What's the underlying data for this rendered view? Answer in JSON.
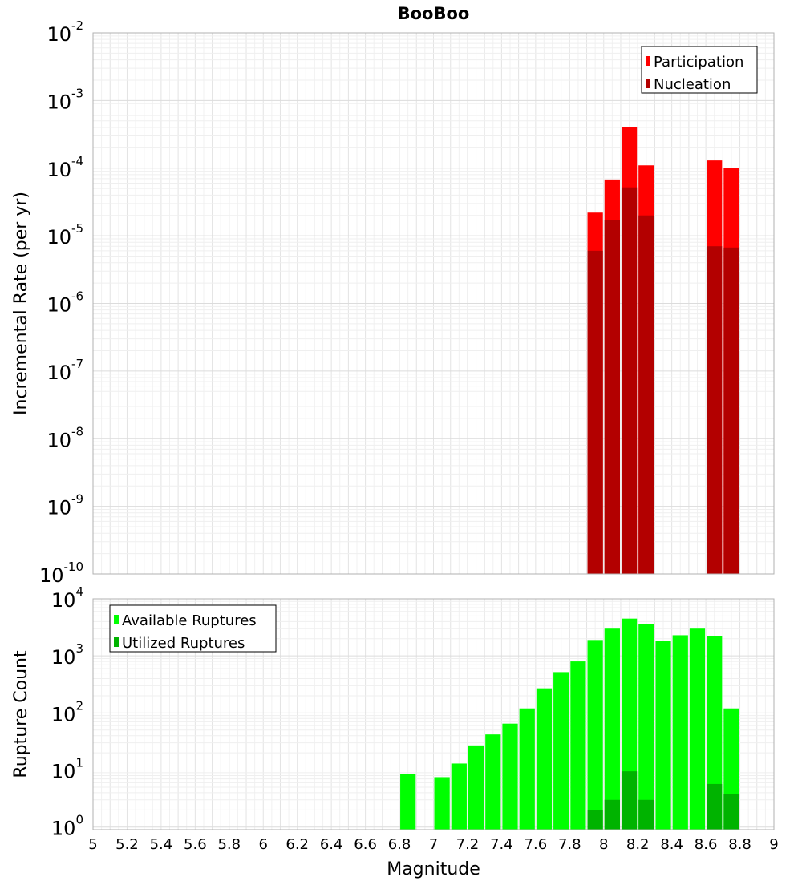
{
  "chart_data": [
    {
      "type": "bar",
      "title": "BooBoo",
      "xlabel": "",
      "ylabel": "Incremental Rate (per yr)",
      "yscale": "log",
      "ylim": [
        1e-10,
        0.01
      ],
      "xlim": [
        5,
        9
      ],
      "grid": true,
      "legend_position": "top-right",
      "y_ticks": [
        {
          "base": "10",
          "exp": "-10",
          "value": 1e-10
        },
        {
          "base": "10",
          "exp": "-9",
          "value": 1e-09
        },
        {
          "base": "10",
          "exp": "-8",
          "value": 1e-08
        },
        {
          "base": "10",
          "exp": "-7",
          "value": 1e-07
        },
        {
          "base": "10",
          "exp": "-6",
          "value": 1e-06
        },
        {
          "base": "10",
          "exp": "-5",
          "value": 1e-05
        },
        {
          "base": "10",
          "exp": "-4",
          "value": 0.0001
        },
        {
          "base": "10",
          "exp": "-3",
          "value": 0.001
        },
        {
          "base": "10",
          "exp": "-2",
          "value": 0.01
        }
      ],
      "bar_width": 0.1,
      "series": [
        {
          "name": "Participation",
          "color": "#ff0000",
          "x": [
            7.95,
            8.05,
            8.15,
            8.25,
            8.65,
            8.75
          ],
          "values": [
            2.2e-05,
            6.8e-05,
            0.00041,
            0.00011,
            0.00013,
            0.0001
          ]
        },
        {
          "name": "Nucleation",
          "color": "#b30000",
          "x": [
            7.95,
            8.05,
            8.15,
            8.25,
            8.65,
            8.75
          ],
          "values": [
            6e-06,
            1.7e-05,
            5.2e-05,
            2e-05,
            7e-06,
            6.7e-06
          ]
        }
      ]
    },
    {
      "type": "bar",
      "title": "",
      "xlabel": "Magnitude",
      "ylabel": "Rupture Count",
      "yscale": "log",
      "ylim": [
        0.9,
        10000
      ],
      "xlim": [
        5,
        9
      ],
      "grid": true,
      "legend_position": "top-left",
      "x_ticks": [
        "5",
        "5.2",
        "5.4",
        "5.6",
        "5.8",
        "6",
        "6.2",
        "6.4",
        "6.6",
        "6.8",
        "7",
        "7.2",
        "7.4",
        "7.6",
        "7.8",
        "8",
        "8.2",
        "8.4",
        "8.6",
        "8.8",
        "9"
      ],
      "y_ticks": [
        {
          "base": "10",
          "exp": "0",
          "value": 1
        },
        {
          "base": "10",
          "exp": "1",
          "value": 10
        },
        {
          "base": "10",
          "exp": "2",
          "value": 100
        },
        {
          "base": "10",
          "exp": "3",
          "value": 1000
        },
        {
          "base": "10",
          "exp": "4",
          "value": 10000
        }
      ],
      "bar_width": 0.1,
      "series": [
        {
          "name": "Available Ruptures",
          "color": "#00ff00",
          "x": [
            6.85,
            7.05,
            7.15,
            7.25,
            7.35,
            7.45,
            7.55,
            7.65,
            7.75,
            7.85,
            7.95,
            8.05,
            8.15,
            8.25,
            8.35,
            8.45,
            8.55,
            8.65,
            8.75
          ],
          "values": [
            8.5,
            7.5,
            13,
            27,
            42,
            65,
            120,
            270,
            520,
            800,
            1900,
            3000,
            4500,
            3600,
            1850,
            2300,
            3000,
            2200,
            120
          ]
        },
        {
          "name": "Utilized Ruptures",
          "color": "#00b300",
          "x": [
            7.95,
            8.05,
            8.15,
            8.25,
            8.65,
            8.75
          ],
          "values": [
            2,
            3,
            9.5,
            3,
            5.7,
            3.8
          ]
        }
      ]
    }
  ]
}
